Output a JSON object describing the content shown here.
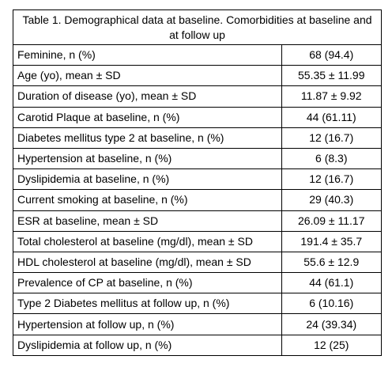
{
  "table": {
    "caption": "Table 1. Demographical data at baseline. Comorbidities at baseline and at follow up",
    "rows": [
      {
        "label": "Feminine, n (%)",
        "value": "68 (94.4)"
      },
      {
        "label": "Age (yo), mean ± SD",
        "value": "55.35 ± 11.99"
      },
      {
        "label": "Duration of disease (yo), mean ± SD",
        "value": "11.87 ± 9.92"
      },
      {
        "label": "Carotid Plaque at baseline, n (%)",
        "value": "44 (61.11)"
      },
      {
        "label": "Diabetes mellitus type 2 at baseline, n (%)",
        "value": "12 (16.7)"
      },
      {
        "label": "Hypertension at baseline, n (%)",
        "value": "6 (8.3)"
      },
      {
        "label": "Dyslipidemia at baseline, n (%)",
        "value": "12 (16.7)"
      },
      {
        "label": "Current smoking at baseline, n (%)",
        "value": "29 (40.3)"
      },
      {
        "label": "ESR at baseline, mean ± SD",
        "value": "26.09 ± 11.17"
      },
      {
        "label": "Total cholesterol at baseline (mg/dl), mean ± SD",
        "value": "191.4 ± 35.7"
      },
      {
        "label": "HDL cholesterol at baseline (mg/dl), mean ± SD",
        "value": "55.6 ± 12.9"
      },
      {
        "label": "Prevalence of CP at baseline, n (%)",
        "value": "44 (61.1)"
      },
      {
        "label": "Type 2 Diabetes mellitus at follow up, n (%)",
        "value": "6 (10.16)"
      },
      {
        "label": "Hypertension at follow up, n (%)",
        "value": "24 (39.34)"
      },
      {
        "label": "Dyslipidemia at follow up, n (%)",
        "value": "12 (25)"
      }
    ]
  }
}
